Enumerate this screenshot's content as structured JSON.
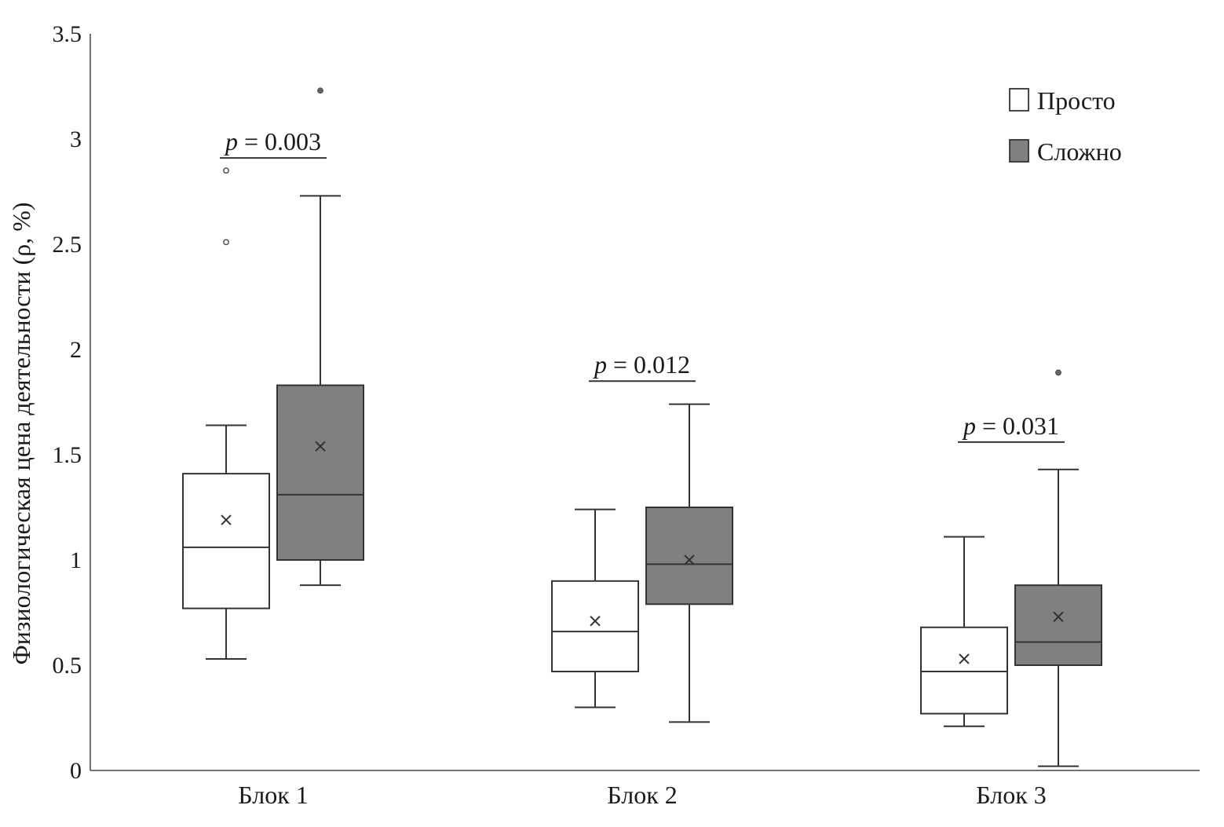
{
  "chart_data": {
    "type": "boxplot",
    "ylabel": "Физиологическая цена деятельности (ρ, %)",
    "xlabel": "",
    "ylim": [
      0,
      3.5
    ],
    "yticks": [
      "0",
      "0.5",
      "1",
      "1.5",
      "2",
      "2.5",
      "3",
      "3.5"
    ],
    "ytick_values": [
      0,
      0.5,
      1,
      1.5,
      2,
      2.5,
      3,
      3.5
    ],
    "grid": false,
    "legend_position": "top-right",
    "categories": [
      "Блок 1",
      "Блок 2",
      "Блок 3"
    ],
    "series": [
      {
        "name": "Просто",
        "color": "#ffffff",
        "boxes": [
          {
            "min": 0.53,
            "q1": 0.77,
            "median": 1.06,
            "q3": 1.41,
            "max": 1.64,
            "mean": 1.19,
            "outliers": [
              2.51,
              2.85
            ]
          },
          {
            "min": 0.3,
            "q1": 0.47,
            "median": 0.66,
            "q3": 0.9,
            "max": 1.24,
            "mean": 0.71,
            "outliers": []
          },
          {
            "min": 0.21,
            "q1": 0.27,
            "median": 0.47,
            "q3": 0.68,
            "max": 1.11,
            "mean": 0.53,
            "outliers": []
          }
        ]
      },
      {
        "name": "Сложно",
        "color": "#808080",
        "boxes": [
          {
            "min": 0.88,
            "q1": 1.0,
            "median": 1.31,
            "q3": 1.83,
            "max": 2.73,
            "mean": 1.54,
            "outliers": [
              3.23
            ]
          },
          {
            "min": 0.23,
            "q1": 0.79,
            "median": 0.98,
            "q3": 1.25,
            "max": 1.74,
            "mean": 1.0,
            "outliers": []
          },
          {
            "min": 0.02,
            "q1": 0.5,
            "median": 0.61,
            "q3": 0.88,
            "max": 1.43,
            "mean": 0.73,
            "outliers": [
              1.89
            ]
          }
        ]
      }
    ],
    "annotations": [
      {
        "category": 0,
        "p_symbol": "p",
        "text": " = 0.003",
        "y": 2.91
      },
      {
        "category": 1,
        "p_symbol": "p",
        "text": " = 0.012",
        "y": 1.85
      },
      {
        "category": 2,
        "p_symbol": "p",
        "text": " = 0.031",
        "y": 1.56
      }
    ]
  }
}
